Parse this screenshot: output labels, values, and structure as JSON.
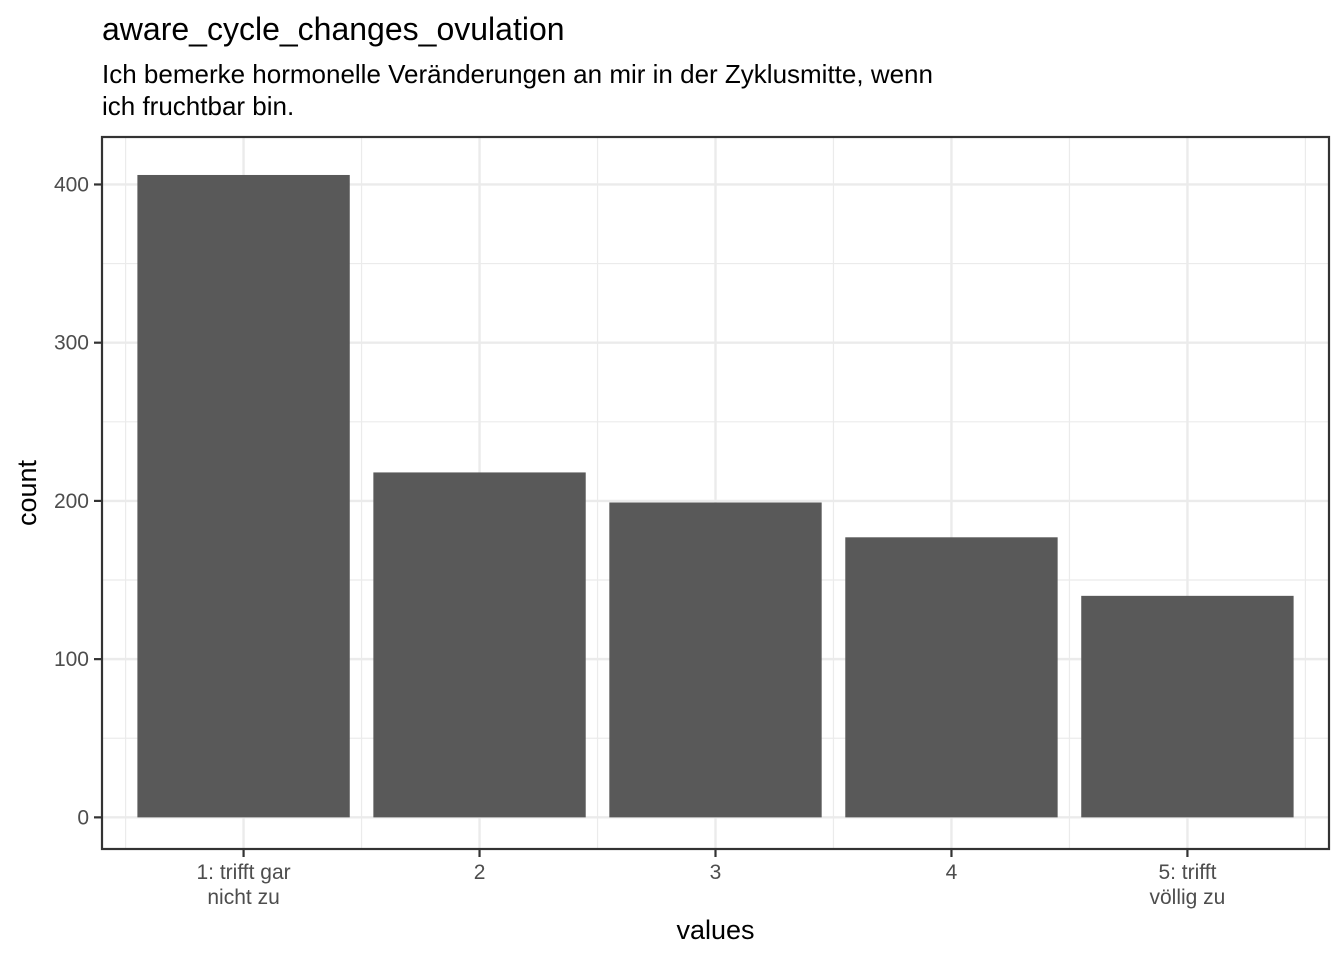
{
  "chart_data": {
    "type": "bar",
    "title": "aware_cycle_changes_ovulation",
    "subtitle_lines": [
      "Ich bemerke hormonelle Veränderungen an mir in der Zyklusmitte, wenn",
      "ich fruchtbar bin."
    ],
    "xlabel": "values",
    "ylabel": "count",
    "categories": [
      [
        "1: trifft gar",
        "nicht zu"
      ],
      [
        "2"
      ],
      [
        "3"
      ],
      [
        "4"
      ],
      [
        "5: trifft",
        "völlig zu"
      ]
    ],
    "values": [
      406,
      218,
      199,
      177,
      140
    ],
    "ylim": [
      -20,
      430
    ],
    "yticks": [
      0,
      100,
      200,
      300,
      400
    ],
    "grid": true,
    "bar_color": "#595959",
    "grid_color": "#ebebeb",
    "panel_border_color": "#333333",
    "tick_color": "#333333"
  }
}
